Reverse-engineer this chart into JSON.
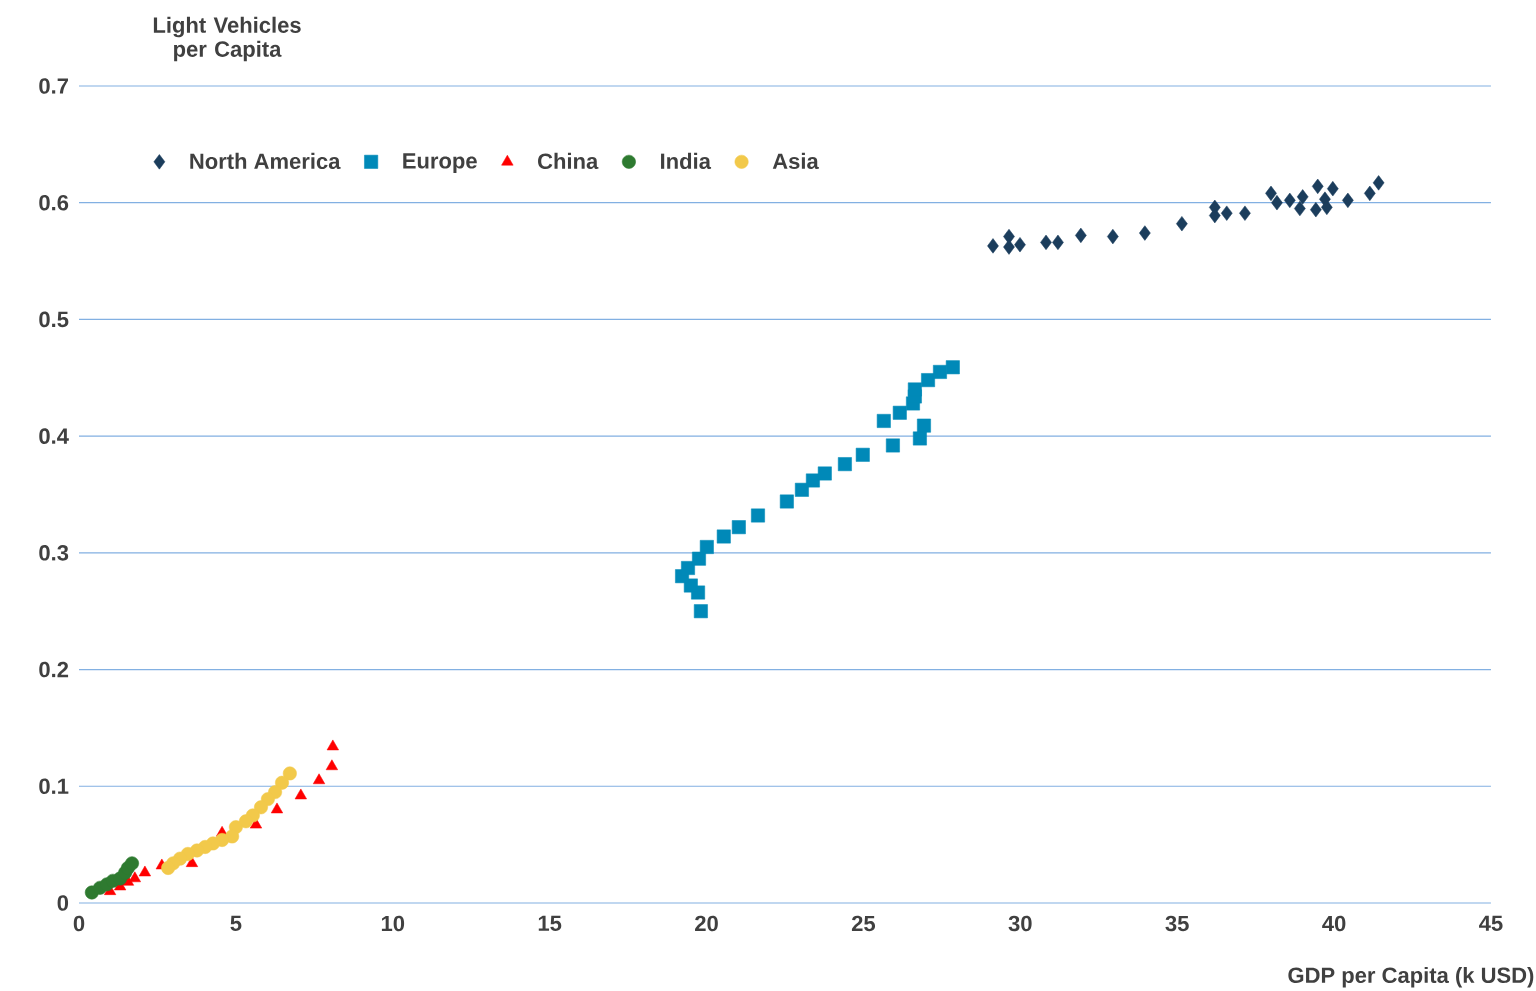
{
  "chart_data": {
    "type": "scatter",
    "xlabel": "GDP per Capita (k USD)",
    "ylabel": "Light Vehicles per Capita",
    "xlim": [
      0,
      45
    ],
    "ylim": [
      0,
      0.7
    ],
    "xticks": [
      0,
      5,
      10,
      15,
      20,
      25,
      30,
      35,
      40,
      45
    ],
    "yticks": [
      0,
      0.1,
      0.2,
      0.3,
      0.4,
      0.5,
      0.6,
      0.7
    ],
    "grid": "y",
    "legend": "top left",
    "series": [
      {
        "name": "North America",
        "color": "#1b3d5c",
        "marker": "diamond",
        "x": [
          29.13,
          29.64,
          29.64,
          29.99,
          30.82,
          31.2,
          31.93,
          32.95,
          33.97,
          35.15,
          36.2,
          36.2,
          36.58,
          37.16,
          37.99,
          38.18,
          38.59,
          38.91,
          39.0,
          39.42,
          39.48,
          39.71,
          39.77,
          39.96,
          40.44,
          41.14,
          41.42
        ],
        "values": [
          0.563,
          0.571,
          0.562,
          0.564,
          0.566,
          0.566,
          0.572,
          0.571,
          0.574,
          0.582,
          0.596,
          0.589,
          0.591,
          0.591,
          0.608,
          0.6,
          0.602,
          0.595,
          0.605,
          0.594,
          0.614,
          0.603,
          0.596,
          0.612,
          0.602,
          0.608,
          0.617
        ]
      },
      {
        "name": "Europe",
        "color": "#0089b8",
        "marker": "square",
        "x": [
          19.82,
          19.73,
          19.5,
          19.22,
          19.41,
          19.76,
          20.01,
          20.55,
          21.03,
          21.64,
          22.56,
          23.04,
          23.39,
          23.77,
          24.41,
          24.98,
          25.65,
          25.94,
          26.16,
          26.58,
          26.64,
          26.64,
          26.8,
          26.93,
          27.06,
          27.44,
          27.85
        ],
        "values": [
          0.25,
          0.266,
          0.272,
          0.28,
          0.287,
          0.295,
          0.305,
          0.314,
          0.322,
          0.332,
          0.344,
          0.354,
          0.362,
          0.368,
          0.376,
          0.384,
          0.413,
          0.392,
          0.42,
          0.428,
          0.434,
          0.44,
          0.398,
          0.409,
          0.448,
          0.455,
          0.459
        ]
      },
      {
        "name": "China",
        "color": "#ff0000",
        "marker": "triangle",
        "x": [
          8.09,
          8.06,
          7.65,
          7.07,
          6.31,
          5.64,
          4.56,
          3.6,
          2.64,
          2.1,
          1.78,
          1.56,
          1.31,
          0.99
        ],
        "values": [
          0.134,
          0.117,
          0.105,
          0.092,
          0.08,
          0.067,
          0.06,
          0.034,
          0.032,
          0.026,
          0.021,
          0.018,
          0.014,
          0.01
        ]
      },
      {
        "name": "India",
        "color": "#2e7a30",
        "marker": "circle",
        "x": [
          0.41,
          0.67,
          0.89,
          1.08,
          1.31,
          1.47,
          1.56,
          1.69
        ],
        "values": [
          0.009,
          0.013,
          0.016,
          0.019,
          0.021,
          0.026,
          0.03,
          0.034
        ]
      },
      {
        "name": "Asia",
        "color": "#f2c94a",
        "marker": "circle",
        "x": [
          6.72,
          6.47,
          6.25,
          6.02,
          5.8,
          5.54,
          5.32,
          5.0,
          4.88,
          4.56,
          4.27,
          4.02,
          3.76,
          3.47,
          3.22,
          3.0,
          2.84
        ],
        "values": [
          0.111,
          0.103,
          0.095,
          0.089,
          0.082,
          0.075,
          0.07,
          0.065,
          0.057,
          0.054,
          0.051,
          0.048,
          0.045,
          0.042,
          0.038,
          0.034,
          0.03
        ]
      }
    ]
  }
}
